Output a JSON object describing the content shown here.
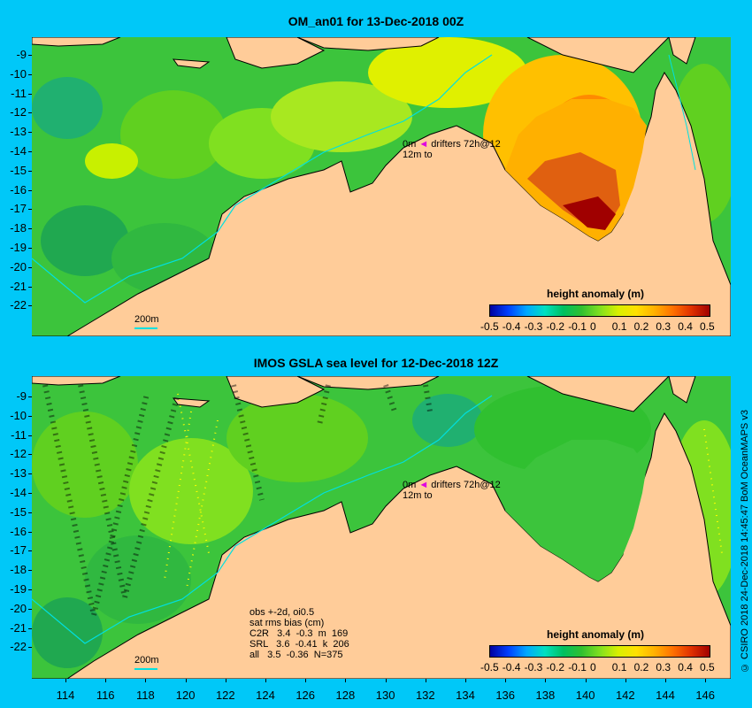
{
  "panel_top": {
    "title": "OM_an01 for 13-Dec-2018 00Z",
    "colorbar_title": "height anomaly (m)",
    "colorbar_ticks": [
      "-0.5",
      "-0.4",
      "-0.3",
      "-0.2",
      "-0.1",
      "0",
      "0.1",
      "0.2",
      "0.3",
      "0.4",
      "0.5"
    ],
    "drifters_line1": "0m",
    "drifters_arrow": "◄",
    "drifters_text": "drifters 72h@12",
    "drifters_line2": "12m",
    "drifters_line2_text": "to",
    "isobath_label": "200m"
  },
  "panel_bottom": {
    "title": "IMOS GSLA sea level  for 12-Dec-2018 12Z",
    "colorbar_title": "height anomaly (m)",
    "colorbar_ticks": [
      "-0.5",
      "-0.4",
      "-0.3",
      "-0.2",
      "-0.1",
      "0",
      "0.1",
      "0.2",
      "0.3",
      "0.4",
      "0.5"
    ],
    "drifters_line1": "0m",
    "drifters_arrow": "◄",
    "drifters_text": "drifters 72h@12",
    "drifters_line2": "12m",
    "drifters_line2_text": "to",
    "isobath_label": "200m",
    "stats": {
      "line1": "obs +-2d, oi0.5",
      "line2": "sat rms bias (cm)",
      "line3": "C2R   3.4  -0.3  m  169",
      "line4": "SRL   3.6  -0.41  k  206",
      "line5": "all   3.5  -0.36  N=375"
    }
  },
  "y_axis_labels": [
    "-9",
    "-10",
    "-11",
    "-12",
    "-13",
    "-14",
    "-15",
    "-16",
    "-17",
    "-18",
    "-19",
    "-20",
    "-21",
    "-22"
  ],
  "x_axis_labels": [
    "114",
    "116",
    "118",
    "120",
    "122",
    "124",
    "126",
    "128",
    "130",
    "132",
    "134",
    "136",
    "138",
    "140",
    "142",
    "144",
    "146"
  ],
  "credit": "© CSIRO 2018   24-Dec-2018 14:45:47 BoM OceanMAPS v3",
  "colors": {
    "background": "#00c8f8",
    "land": "#ffcc99",
    "ocean_base": "#3cc43c",
    "anomaly_high": "#a00000",
    "anomaly_low": "#0000a0"
  }
}
